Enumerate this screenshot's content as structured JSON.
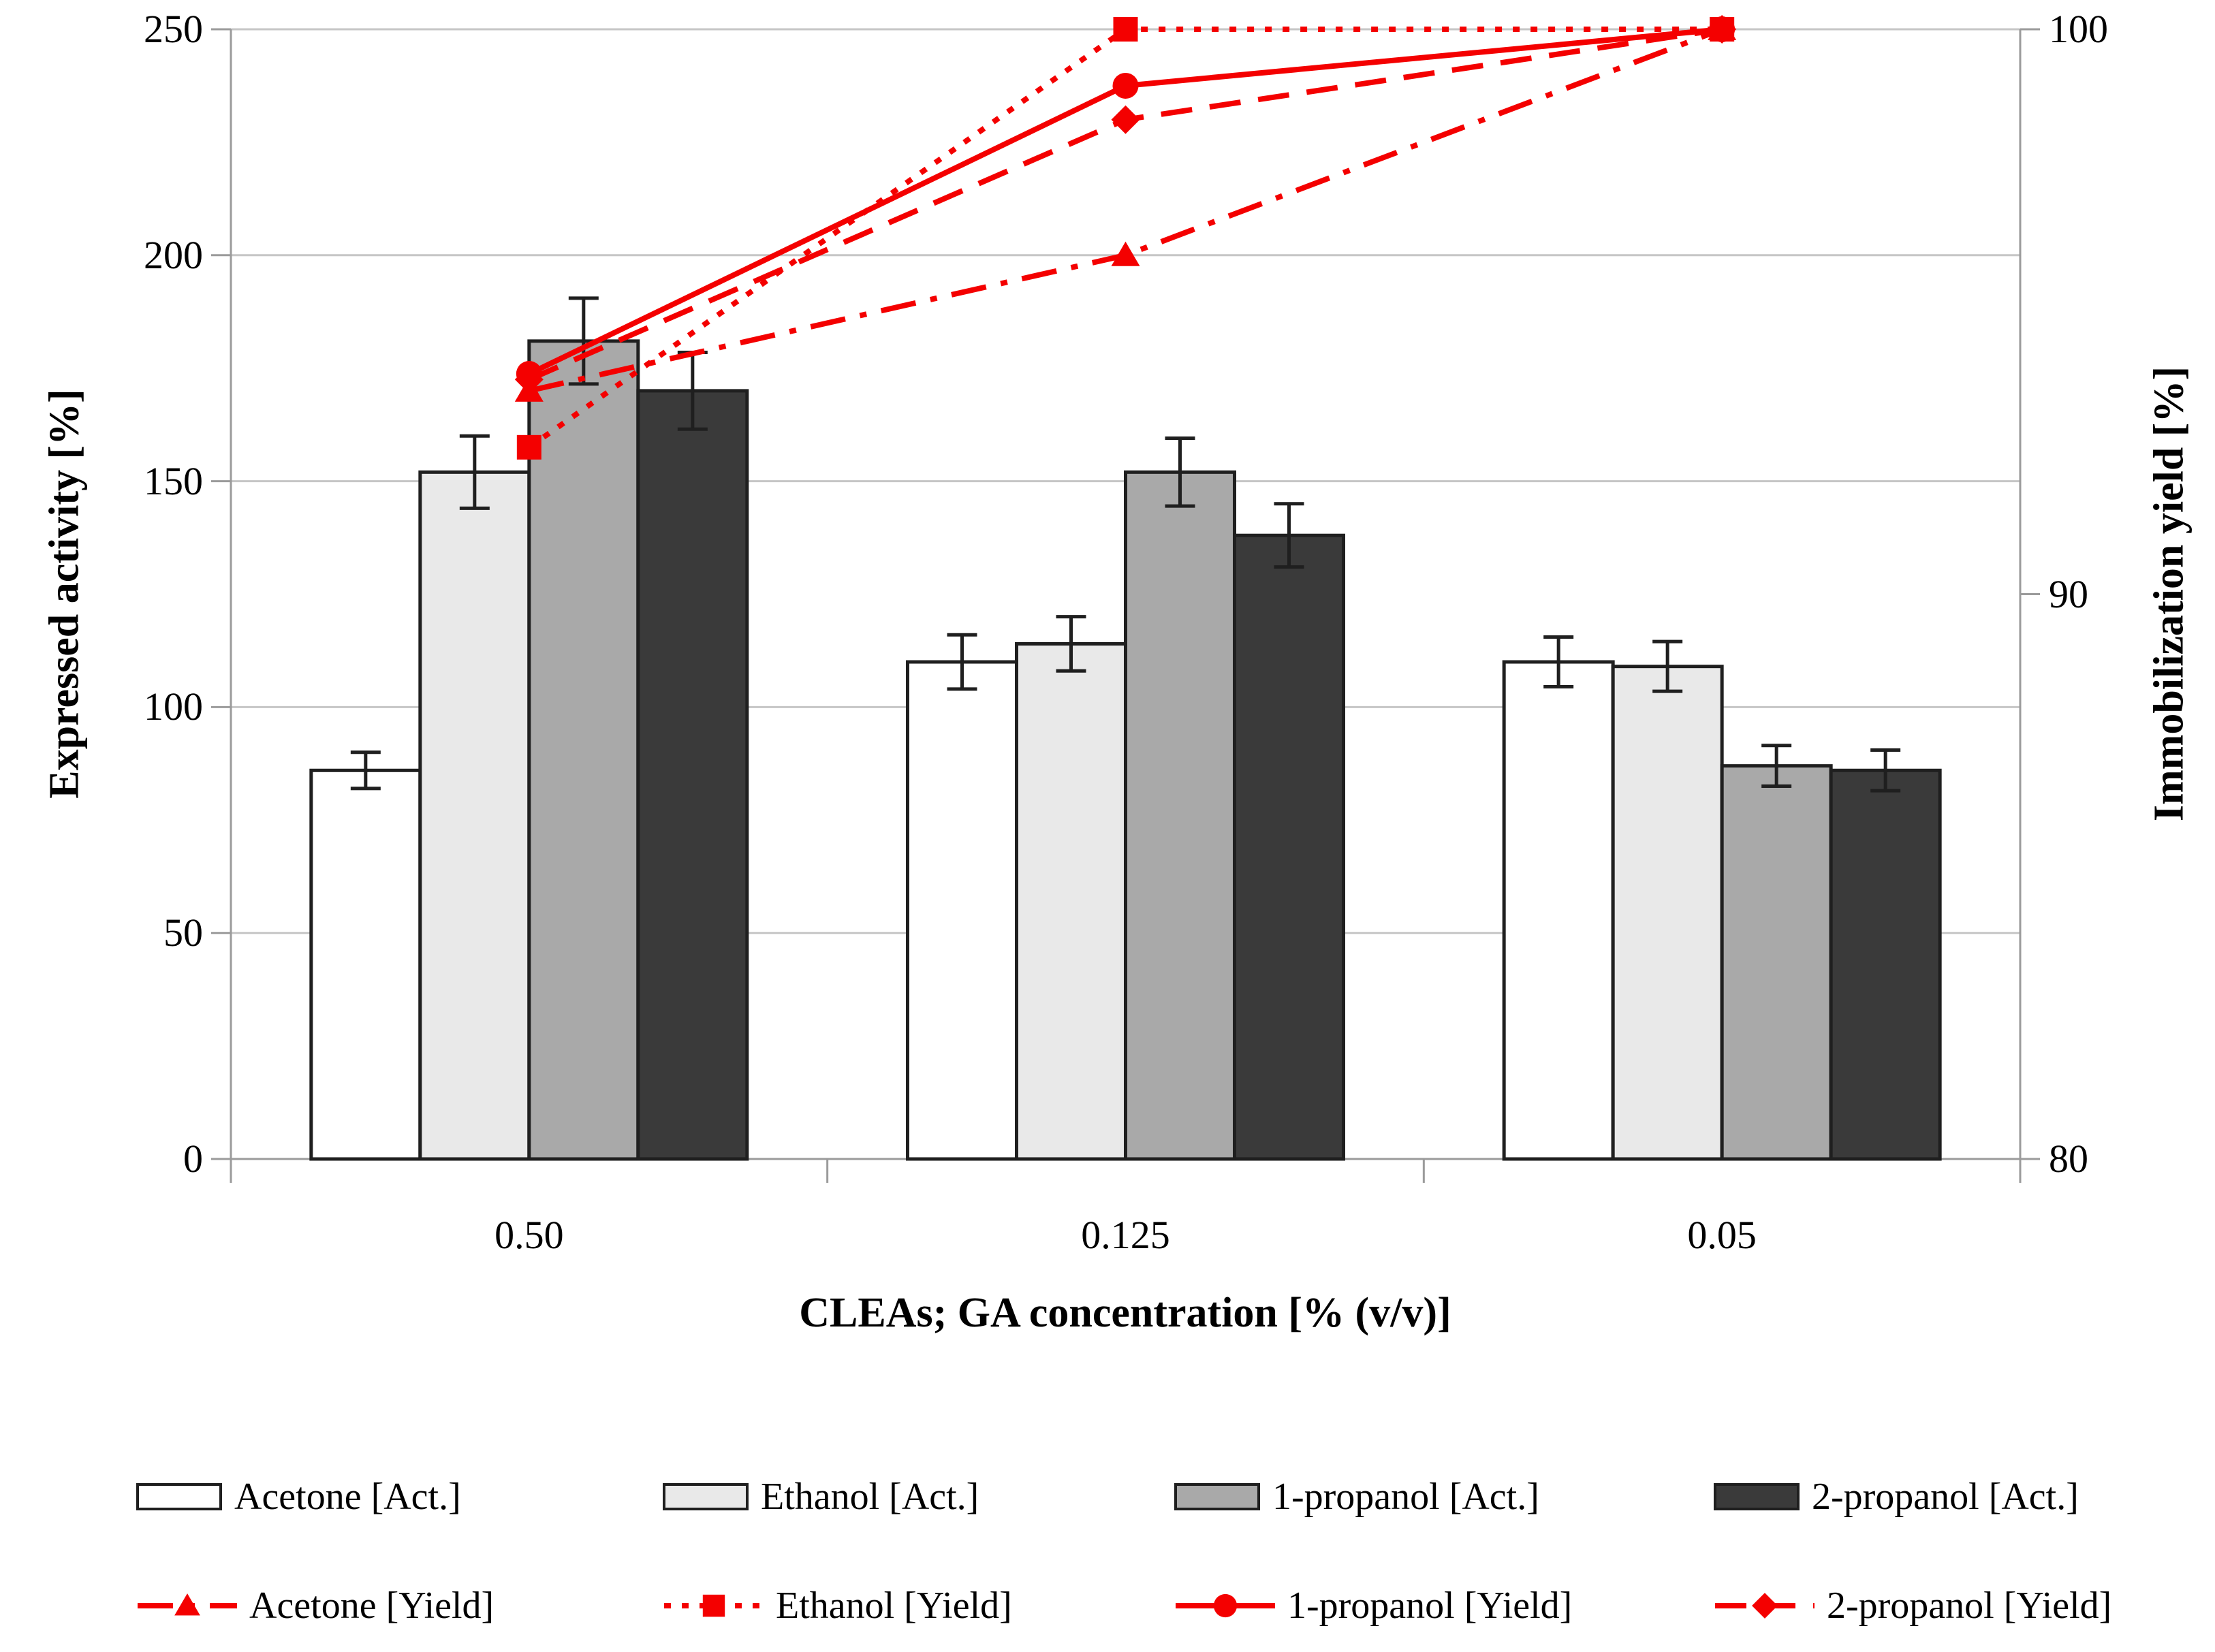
{
  "page": {
    "background": "#ffffff"
  },
  "chart_data": {
    "type": "bar+line",
    "title": "",
    "categories": [
      "0.50",
      "0.125",
      "0.05"
    ],
    "xlabel": "CLEAs; GA concentration [% (v/v)]",
    "left_axis": {
      "label": "Expressed activity [%]",
      "ticks": [
        250,
        200,
        150,
        100,
        50,
        0
      ],
      "range": [
        0,
        250
      ],
      "grid": true
    },
    "right_axis": {
      "label": "Immobilization yield [%]",
      "ticks": [
        100,
        90,
        80
      ],
      "range": [
        80,
        100
      ]
    },
    "bar_series": [
      {
        "name": "Acetone [Act.]",
        "fill": "#ffffff",
        "values": [
          86,
          110,
          110
        ],
        "errors": [
          4,
          6,
          5.5
        ]
      },
      {
        "name": "Ethanol [Act.]",
        "fill": "#e9e9e9",
        "values": [
          152,
          114,
          109
        ],
        "errors": [
          8,
          6,
          5.5
        ]
      },
      {
        "name": "1-propanol [Act.]",
        "fill": "#a9a9a9",
        "values": [
          181,
          152,
          87
        ],
        "errors": [
          9.5,
          7.5,
          4.5
        ]
      },
      {
        "name": "2-propanol [Act.]",
        "fill": "#3a3a3a",
        "values": [
          170,
          138,
          86
        ],
        "errors": [
          8.5,
          7,
          4.5
        ]
      }
    ],
    "line_series": [
      {
        "name": "Acetone [Yield]",
        "marker": "triangle",
        "dash": "dashdot",
        "values": [
          93.6,
          96.0,
          100
        ]
      },
      {
        "name": "Ethanol [Yield]",
        "marker": "square",
        "dash": "dot",
        "values": [
          92.6,
          100,
          100
        ]
      },
      {
        "name": "1-propanol [Yield]",
        "marker": "circle",
        "dash": "solid",
        "values": [
          93.9,
          99.0,
          100
        ]
      },
      {
        "name": "2-propanol [Yield]",
        "marker": "diamond",
        "dash": "dash",
        "values": [
          93.8,
          98.4,
          100
        ]
      }
    ],
    "colors": {
      "line": "#f40000",
      "bar_border": "#1f1f1f",
      "error_bar": "#1f1f1f",
      "gridline": "#c6c6c6",
      "axis": "#9b9b9b",
      "text": "#000000"
    },
    "legend_position": "bottom",
    "grid": "horizontal"
  }
}
